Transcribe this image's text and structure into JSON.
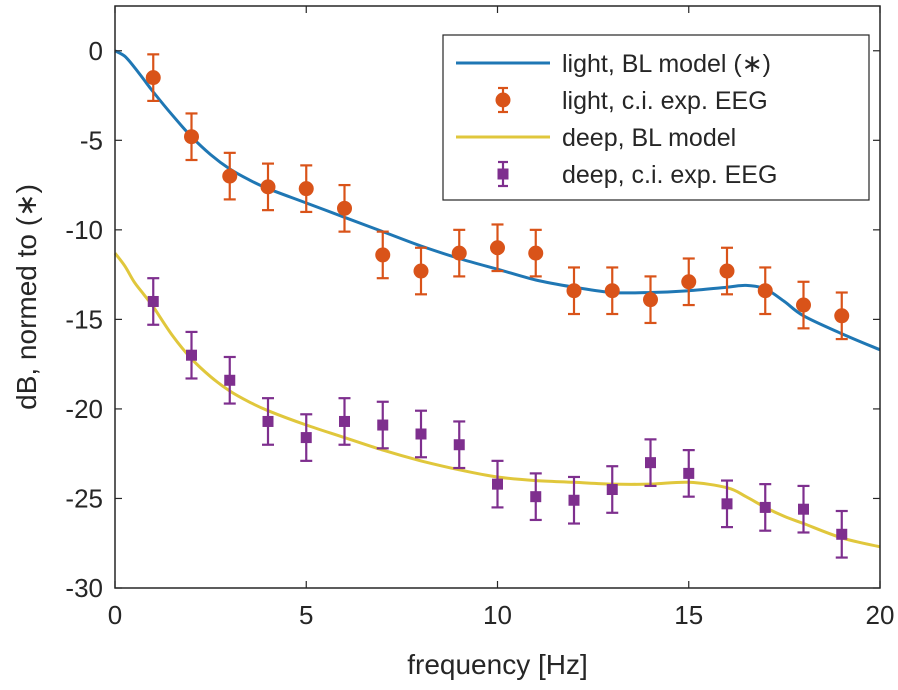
{
  "chart_data": {
    "type": "line",
    "title": "",
    "xlabel": "frequency [Hz]",
    "ylabel": "dB, normed to (∗)",
    "xlim": [
      0,
      20
    ],
    "ylim": [
      -30,
      2.5
    ],
    "xticks": [
      0,
      5,
      10,
      15,
      20
    ],
    "xtick_labels": [
      "0",
      "5",
      "10",
      "15",
      "20"
    ],
    "yticks": [
      0,
      -5,
      -10,
      -15,
      -20,
      -25,
      -30
    ],
    "ytick_labels": [
      "0",
      "-5",
      "-10",
      "-15",
      "-20",
      "-25",
      "-30"
    ],
    "grid": false,
    "legend_position": "top-right",
    "series": [
      {
        "name": "light, BL model (∗)",
        "kind": "line",
        "color": "#1f77b4",
        "x": [
          0,
          0.25,
          0.5,
          0.75,
          1,
          1.5,
          2,
          2.5,
          3,
          3.5,
          4,
          5,
          6,
          7,
          8,
          9,
          10,
          11,
          12,
          13,
          14,
          15,
          16,
          16.5,
          17,
          17.5,
          18,
          19,
          20
        ],
        "y": [
          0,
          -0.3,
          -0.9,
          -1.6,
          -2.3,
          -3.6,
          -4.8,
          -5.8,
          -6.6,
          -7.2,
          -7.7,
          -8.5,
          -9.3,
          -10.1,
          -10.9,
          -11.6,
          -12.2,
          -12.8,
          -13.2,
          -13.5,
          -13.5,
          -13.4,
          -13.2,
          -13.1,
          -13.3,
          -14.0,
          -14.8,
          -15.8,
          -16.7
        ]
      },
      {
        "name": "light, c.i. exp. EEG",
        "kind": "errorbar",
        "marker": "circle",
        "color": "#d95319",
        "x": [
          1,
          2,
          3,
          4,
          5,
          6,
          7,
          8,
          9,
          10,
          11,
          12,
          13,
          14,
          15,
          16,
          17,
          18,
          19
        ],
        "y": [
          -1.5,
          -4.8,
          -7.0,
          -7.6,
          -7.7,
          -8.8,
          -11.4,
          -12.3,
          -11.3,
          -11.0,
          -11.3,
          -13.4,
          -13.4,
          -13.9,
          -12.9,
          -12.3,
          -13.4,
          -14.2,
          -14.8
        ],
        "yerr": [
          1.3,
          1.3,
          1.3,
          1.3,
          1.3,
          1.3,
          1.3,
          1.3,
          1.3,
          1.3,
          1.3,
          1.3,
          1.3,
          1.3,
          1.3,
          1.3,
          1.3,
          1.3,
          1.3
        ]
      },
      {
        "name": "deep, BL model",
        "kind": "line",
        "color": "#e0c73c",
        "x": [
          0,
          0.25,
          0.5,
          0.75,
          1,
          1.5,
          2,
          2.5,
          3,
          3.5,
          4,
          5,
          6,
          7,
          8,
          9,
          10,
          11,
          12,
          13,
          14,
          15,
          16,
          16.5,
          17,
          17.5,
          18,
          19,
          20
        ],
        "y": [
          -11.3,
          -12.0,
          -12.9,
          -13.6,
          -14.3,
          -15.9,
          -17.2,
          -18.2,
          -19.0,
          -19.6,
          -20.1,
          -20.9,
          -21.6,
          -22.3,
          -22.9,
          -23.4,
          -23.8,
          -24.0,
          -24.1,
          -24.2,
          -24.2,
          -24.1,
          -24.4,
          -24.9,
          -25.5,
          -26.0,
          -26.4,
          -27.2,
          -27.7
        ]
      },
      {
        "name": "deep, c.i. exp. EEG",
        "kind": "errorbar",
        "marker": "square",
        "color": "#7e2f8e",
        "x": [
          1,
          2,
          3,
          4,
          5,
          6,
          7,
          8,
          9,
          10,
          11,
          12,
          13,
          14,
          15,
          16,
          17,
          18,
          19
        ],
        "y": [
          -14.0,
          -17.0,
          -18.4,
          -20.7,
          -21.6,
          -20.7,
          -20.9,
          -21.4,
          -22.0,
          -24.2,
          -24.9,
          -25.1,
          -24.5,
          -23.0,
          -23.6,
          -25.3,
          -25.5,
          -25.6,
          -27.0
        ],
        "yerr": [
          1.3,
          1.3,
          1.3,
          1.3,
          1.3,
          1.3,
          1.3,
          1.3,
          1.3,
          1.3,
          1.3,
          1.3,
          1.3,
          1.3,
          1.3,
          1.3,
          1.3,
          1.3,
          1.3
        ]
      }
    ]
  }
}
